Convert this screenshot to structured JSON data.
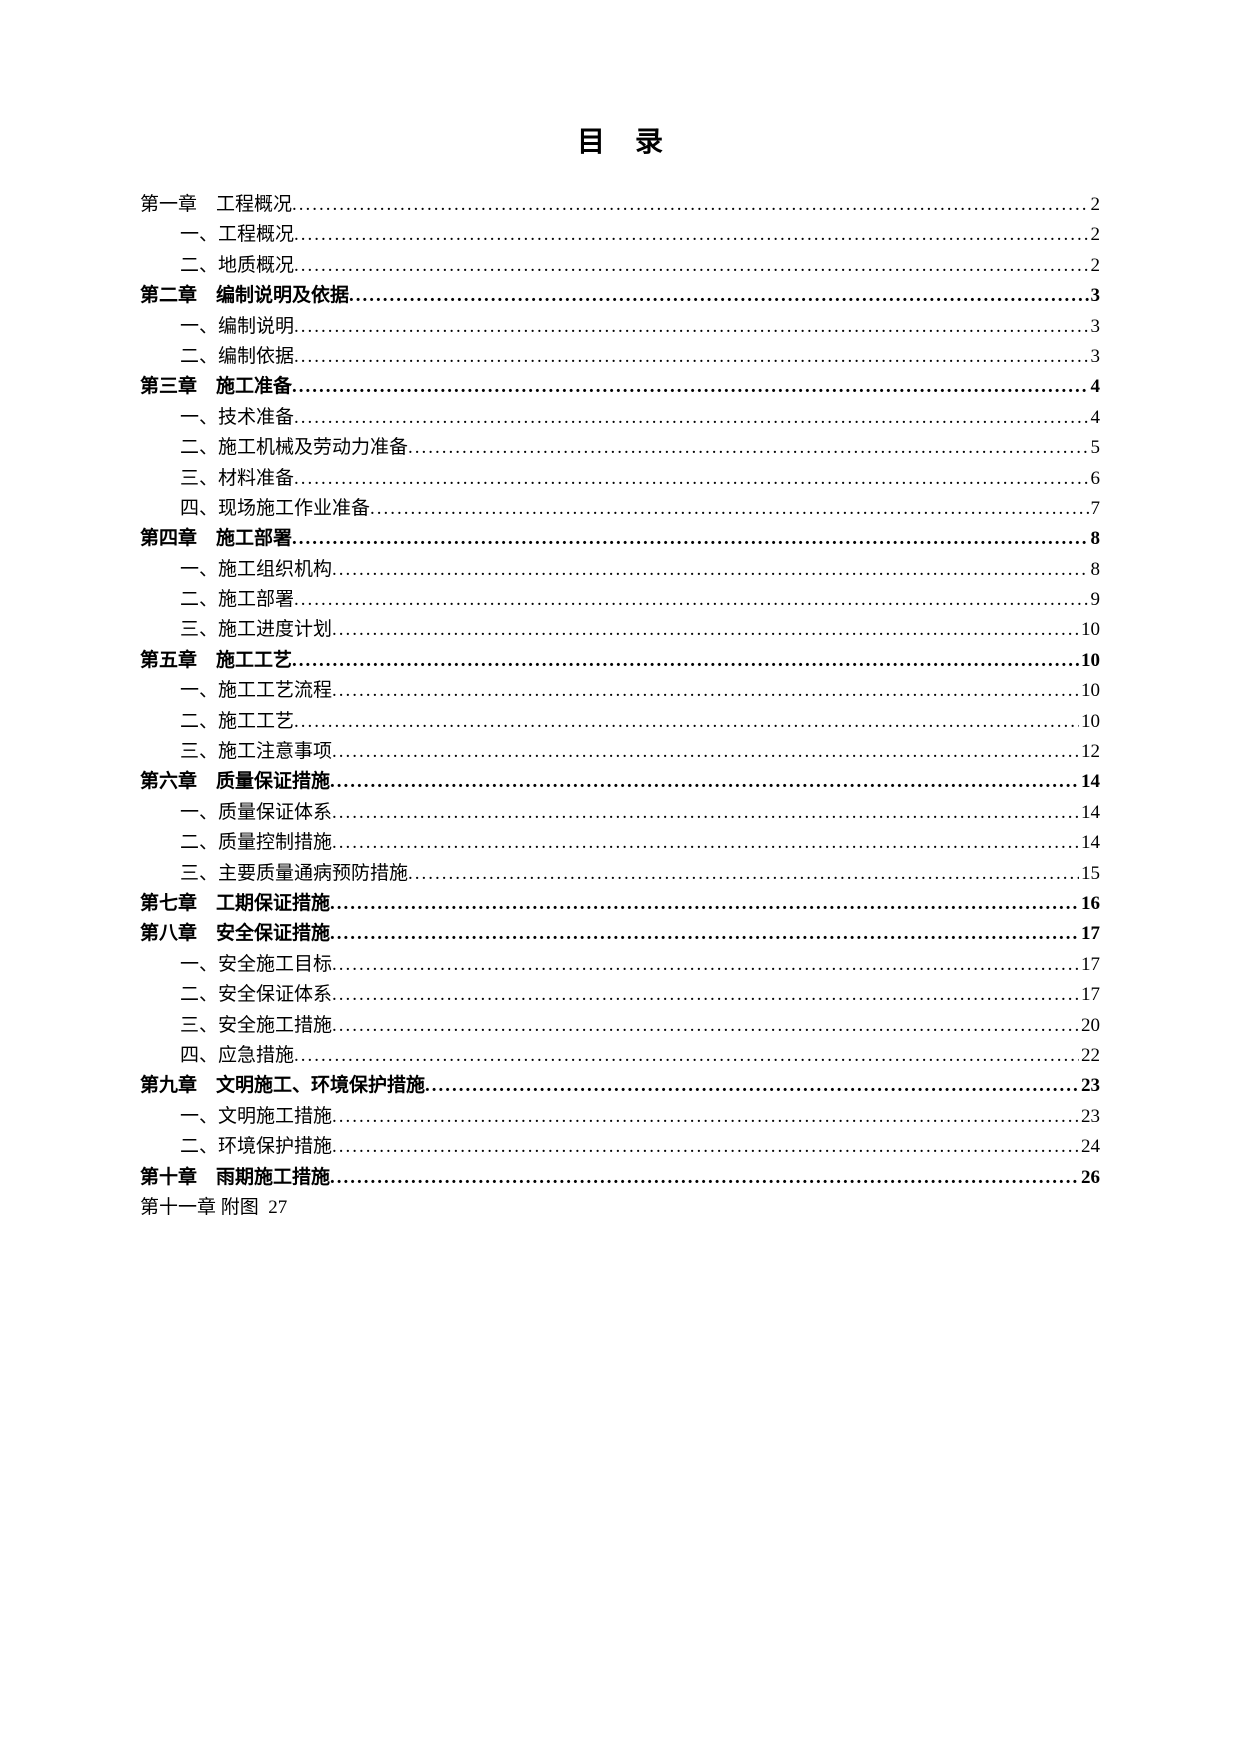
{
  "title": "目录",
  "text_color": "#000000",
  "background_color": "#ffffff",
  "title_fontsize": 28,
  "entry_fontsize": 19,
  "entries": [
    {
      "label": "第一章 工程概况",
      "page": "2",
      "bold": false,
      "indent": false,
      "dots": true
    },
    {
      "label": "一、工程概况",
      "page": "2",
      "bold": false,
      "indent": true,
      "dots": true
    },
    {
      "label": "二、地质概况",
      "page": "2",
      "bold": false,
      "indent": true,
      "dots": true
    },
    {
      "label": "第二章 编制说明及依据",
      "page": "3",
      "bold": true,
      "indent": false,
      "dots": true
    },
    {
      "label": "一、编制说明",
      "page": "3",
      "bold": false,
      "indent": true,
      "dots": true
    },
    {
      "label": "二、编制依据",
      "page": "3",
      "bold": false,
      "indent": true,
      "dots": true
    },
    {
      "label": "第三章 施工准备",
      "page": "4",
      "bold": true,
      "indent": false,
      "dots": true
    },
    {
      "label": "一、技术准备",
      "page": "4",
      "bold": false,
      "indent": true,
      "dots": true
    },
    {
      "label": "二、施工机械及劳动力准备",
      "page": "5",
      "bold": false,
      "indent": true,
      "dots": true
    },
    {
      "label": "三、材料准备",
      "page": "6",
      "bold": false,
      "indent": true,
      "dots": true
    },
    {
      "label": "四、现场施工作业准备",
      "page": "7",
      "bold": false,
      "indent": true,
      "dots": true
    },
    {
      "label": "第四章 施工部署",
      "page": "8",
      "bold": true,
      "indent": false,
      "dots": true
    },
    {
      "label": "一、施工组织机构",
      "page": "8",
      "bold": false,
      "indent": true,
      "dots": true
    },
    {
      "label": "二、施工部署",
      "page": "9",
      "bold": false,
      "indent": true,
      "dots": true
    },
    {
      "label": "三、施工进度计划",
      "page": "10",
      "bold": false,
      "indent": true,
      "dots": true
    },
    {
      "label": "第五章 施工工艺",
      "page": "10",
      "bold": true,
      "indent": false,
      "dots": true
    },
    {
      "label": "一、施工工艺流程",
      "page": "10",
      "bold": false,
      "indent": true,
      "dots": true
    },
    {
      "label": "二、施工工艺",
      "page": "10",
      "bold": false,
      "indent": true,
      "dots": true
    },
    {
      "label": "三、施工注意事项",
      "page": "12",
      "bold": false,
      "indent": true,
      "dots": true
    },
    {
      "label": "第六章 质量保证措施",
      "page": "14",
      "bold": true,
      "indent": false,
      "dots": true
    },
    {
      "label": "一、质量保证体系",
      "page": "14",
      "bold": false,
      "indent": true,
      "dots": true
    },
    {
      "label": "二、质量控制措施",
      "page": "14",
      "bold": false,
      "indent": true,
      "dots": true
    },
    {
      "label": "三、主要质量通病预防措施",
      "page": "15",
      "bold": false,
      "indent": true,
      "dots": true
    },
    {
      "label": "第七章 工期保证措施",
      "page": "16",
      "bold": true,
      "indent": false,
      "dots": true
    },
    {
      "label": "第八章 安全保证措施",
      "page": "17",
      "bold": true,
      "indent": false,
      "dots": true
    },
    {
      "label": "一、安全施工目标",
      "page": "17",
      "bold": false,
      "indent": true,
      "dots": true
    },
    {
      "label": "二、安全保证体系",
      "page": "17",
      "bold": false,
      "indent": true,
      "dots": true
    },
    {
      "label": "三、安全施工措施",
      "page": "20",
      "bold": false,
      "indent": true,
      "dots": true
    },
    {
      "label": "四、应急措施",
      "page": "22",
      "bold": false,
      "indent": true,
      "dots": true
    },
    {
      "label": "第九章 文明施工、环境保护措施",
      "page": "23",
      "bold": true,
      "indent": false,
      "dots": true
    },
    {
      "label": "一、文明施工措施",
      "page": "23",
      "bold": false,
      "indent": true,
      "dots": true
    },
    {
      "label": "二、环境保护措施",
      "page": "24",
      "bold": false,
      "indent": true,
      "dots": true
    },
    {
      "label": "第十章 雨期施工措施",
      "page": "26",
      "bold": true,
      "indent": false,
      "dots": true
    },
    {
      "label": "第十一章 附图 27",
      "page": "",
      "bold": false,
      "indent": false,
      "dots": false
    }
  ]
}
